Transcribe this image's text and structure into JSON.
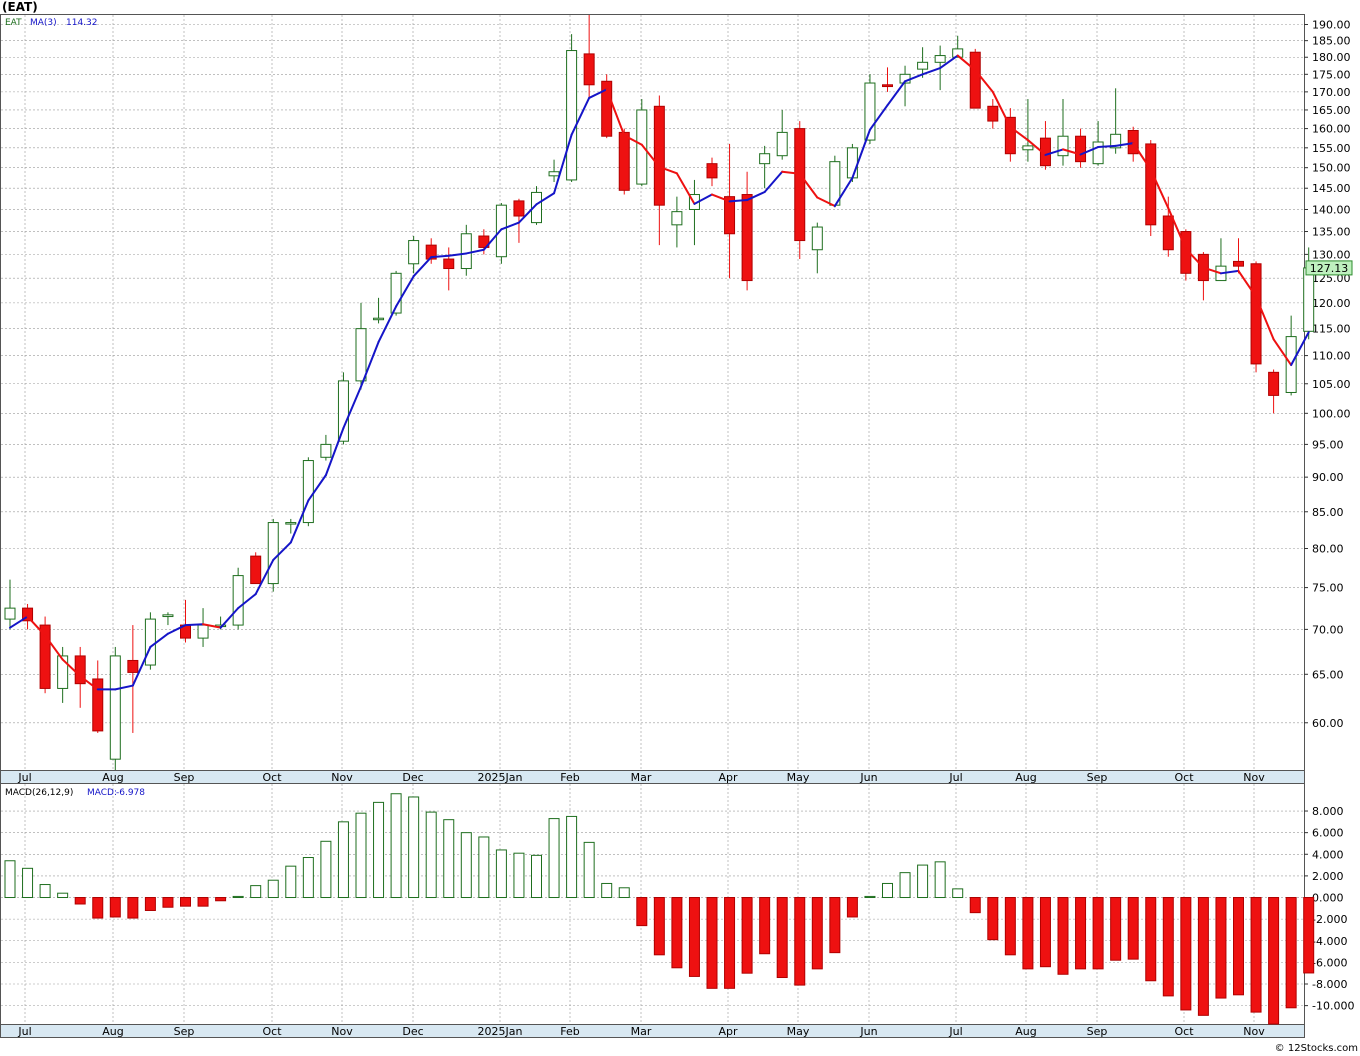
{
  "header": {
    "symbol": "(EAT)",
    "legend_symbol": "EAT",
    "ma_label": "MA(3)",
    "ma_value": "114.32",
    "macd_params": "MACD(26,12,9)",
    "macd_label": "MACD:",
    "macd_value": "-6.978",
    "last_price": "127.13"
  },
  "footer": {
    "copyright": "© 12Stocks.com"
  },
  "colors": {
    "up_candle": "#1e6e1e",
    "down_candle": "#ee1111",
    "ma_up": "#1515c8",
    "ma_down": "#ee1111",
    "grid": "#9a9a9a",
    "axis_band": "#d8e8f2",
    "price_box": "#bff0bf"
  },
  "chart_data": [
    {
      "type": "candlestick",
      "title": "(EAT)",
      "x_labels": [
        "Jul",
        "Aug",
        "Sep",
        "Oct",
        "Nov",
        "Dec",
        "2025Jan",
        "Feb",
        "Mar",
        "Apr",
        "May",
        "Jun",
        "Jul",
        "Aug",
        "Sep",
        "Oct",
        "Nov"
      ],
      "y_ticks": [
        60,
        65,
        70,
        75,
        80,
        85,
        90,
        95,
        100,
        105,
        110,
        115,
        120,
        125,
        130,
        135,
        140,
        145,
        150,
        155,
        160,
        165,
        170,
        175,
        180,
        185,
        190
      ],
      "y_scale": "log",
      "ylim": [
        55.5,
        193
      ],
      "grid": true,
      "last_value": 127.13,
      "candles": [
        {
          "o": 71.2,
          "h": 76.0,
          "l": 70.0,
          "c": 72.5
        },
        {
          "o": 72.5,
          "h": 73.0,
          "l": 70.0,
          "c": 71.0
        },
        {
          "o": 70.5,
          "h": 71.5,
          "l": 63.0,
          "c": 63.5
        },
        {
          "o": 63.5,
          "h": 68.0,
          "l": 62.0,
          "c": 67.0
        },
        {
          "o": 67.0,
          "h": 68.0,
          "l": 61.5,
          "c": 64.0
        },
        {
          "o": 64.5,
          "h": 66.5,
          "l": 59.0,
          "c": 59.2
        },
        {
          "o": 56.5,
          "h": 68.0,
          "l": 55.5,
          "c": 67.0
        },
        {
          "o": 66.5,
          "h": 70.5,
          "l": 59.0,
          "c": 65.2
        },
        {
          "o": 66.0,
          "h": 72.0,
          "l": 65.5,
          "c": 71.2
        },
        {
          "o": 71.5,
          "h": 72.0,
          "l": 70.5,
          "c": 71.7
        },
        {
          "o": 70.5,
          "h": 73.5,
          "l": 68.5,
          "c": 69.0
        },
        {
          "o": 69.0,
          "h": 72.5,
          "l": 68.0,
          "c": 70.5
        },
        {
          "o": 70.5,
          "h": 71.5,
          "l": 70.0,
          "c": 70.5
        },
        {
          "o": 70.5,
          "h": 77.5,
          "l": 70.0,
          "c": 76.5
        },
        {
          "o": 79.0,
          "h": 79.5,
          "l": 75.5,
          "c": 75.5
        },
        {
          "o": 75.5,
          "h": 84.0,
          "l": 74.5,
          "c": 83.5
        },
        {
          "o": 83.5,
          "h": 84.0,
          "l": 82.0,
          "c": 83.5
        },
        {
          "o": 83.5,
          "h": 93.0,
          "l": 83.0,
          "c": 92.5
        },
        {
          "o": 93.0,
          "h": 96.5,
          "l": 92.5,
          "c": 95.0
        },
        {
          "o": 95.5,
          "h": 107.0,
          "l": 95.0,
          "c": 105.5
        },
        {
          "o": 105.5,
          "h": 120.0,
          "l": 104.0,
          "c": 115.0
        },
        {
          "o": 117.0,
          "h": 121.0,
          "l": 116.0,
          "c": 117.0
        },
        {
          "o": 118.0,
          "h": 126.5,
          "l": 117.5,
          "c": 126.0
        },
        {
          "o": 128.0,
          "h": 134.0,
          "l": 126.0,
          "c": 133.0
        },
        {
          "o": 132.0,
          "h": 133.5,
          "l": 128.0,
          "c": 129.0
        },
        {
          "o": 129.0,
          "h": 131.5,
          "l": 122.5,
          "c": 127.0
        },
        {
          "o": 127.0,
          "h": 136.5,
          "l": 125.5,
          "c": 134.5
        },
        {
          "o": 134.0,
          "h": 135.5,
          "l": 130.0,
          "c": 131.5
        },
        {
          "o": 129.5,
          "h": 141.5,
          "l": 128.0,
          "c": 141.0
        },
        {
          "o": 142.0,
          "h": 142.5,
          "l": 132.5,
          "c": 138.5
        },
        {
          "o": 137.0,
          "h": 145.5,
          "l": 136.5,
          "c": 144.0
        },
        {
          "o": 148.0,
          "h": 152.0,
          "l": 146.5,
          "c": 149.0
        },
        {
          "o": 147.0,
          "h": 187.0,
          "l": 146.5,
          "c": 182.0
        },
        {
          "o": 181.0,
          "h": 193.0,
          "l": 168.0,
          "c": 172.0
        },
        {
          "o": 173.0,
          "h": 175.0,
          "l": 157.5,
          "c": 158.0
        },
        {
          "o": 159.0,
          "h": 160.0,
          "l": 143.5,
          "c": 144.5
        },
        {
          "o": 146.0,
          "h": 168.0,
          "l": 145.5,
          "c": 165.0
        },
        {
          "o": 166.0,
          "h": 169.0,
          "l": 132.0,
          "c": 141.0
        },
        {
          "o": 136.5,
          "h": 143.0,
          "l": 131.5,
          "c": 139.5
        },
        {
          "o": 140.0,
          "h": 147.0,
          "l": 132.0,
          "c": 143.5
        },
        {
          "o": 151.0,
          "h": 152.5,
          "l": 145.5,
          "c": 147.5
        },
        {
          "o": 143.0,
          "h": 156.0,
          "l": 125.0,
          "c": 134.5
        },
        {
          "o": 143.5,
          "h": 149.0,
          "l": 122.5,
          "c": 124.5
        },
        {
          "o": 151.0,
          "h": 155.5,
          "l": 145.0,
          "c": 153.5
        },
        {
          "o": 153.0,
          "h": 165.0,
          "l": 152.0,
          "c": 159.0
        },
        {
          "o": 160.0,
          "h": 162.0,
          "l": 129.0,
          "c": 133.0
        },
        {
          "o": 131.0,
          "h": 137.0,
          "l": 126.0,
          "c": 136.0
        },
        {
          "o": 141.0,
          "h": 153.0,
          "l": 140.5,
          "c": 151.5
        },
        {
          "o": 147.5,
          "h": 156.0,
          "l": 146.5,
          "c": 155.0
        },
        {
          "o": 157.0,
          "h": 175.0,
          "l": 156.0,
          "c": 172.5
        },
        {
          "o": 172.0,
          "h": 177.0,
          "l": 170.0,
          "c": 171.5
        },
        {
          "o": 172.5,
          "h": 177.5,
          "l": 166.0,
          "c": 175.0
        },
        {
          "o": 176.5,
          "h": 183.0,
          "l": 174.0,
          "c": 178.5
        },
        {
          "o": 178.5,
          "h": 183.5,
          "l": 170.5,
          "c": 180.5
        },
        {
          "o": 180.0,
          "h": 186.5,
          "l": 180.0,
          "c": 182.5
        },
        {
          "o": 181.5,
          "h": 182.5,
          "l": 165.5,
          "c": 165.5
        },
        {
          "o": 166.0,
          "h": 168.0,
          "l": 160.0,
          "c": 162.0
        },
        {
          "o": 163.0,
          "h": 165.5,
          "l": 151.5,
          "c": 153.5
        },
        {
          "o": 154.5,
          "h": 168.0,
          "l": 151.5,
          "c": 155.5
        },
        {
          "o": 157.5,
          "h": 162.0,
          "l": 149.5,
          "c": 150.5
        },
        {
          "o": 153.0,
          "h": 168.0,
          "l": 150.5,
          "c": 158.0
        },
        {
          "o": 158.0,
          "h": 160.0,
          "l": 150.0,
          "c": 151.5
        },
        {
          "o": 151.0,
          "h": 162.0,
          "l": 150.5,
          "c": 156.5
        },
        {
          "o": 155.0,
          "h": 171.0,
          "l": 153.5,
          "c": 158.5
        },
        {
          "o": 159.5,
          "h": 160.5,
          "l": 151.5,
          "c": 153.5
        },
        {
          "o": 156.0,
          "h": 157.0,
          "l": 134.0,
          "c": 136.5
        },
        {
          "o": 138.5,
          "h": 143.0,
          "l": 129.5,
          "c": 131.0
        },
        {
          "o": 135.0,
          "h": 135.5,
          "l": 124.5,
          "c": 126.0
        },
        {
          "o": 130.0,
          "h": 130.5,
          "l": 120.5,
          "c": 124.5
        },
        {
          "o": 124.5,
          "h": 133.5,
          "l": 124.5,
          "c": 127.5
        },
        {
          "o": 128.5,
          "h": 133.5,
          "l": 126.0,
          "c": 127.5
        },
        {
          "o": 128.0,
          "h": 128.5,
          "l": 107.0,
          "c": 108.5
        },
        {
          "o": 107.0,
          "h": 107.5,
          "l": 100.0,
          "c": 103.0
        },
        {
          "o": 103.5,
          "h": 117.5,
          "l": 103.0,
          "c": 113.5
        },
        {
          "o": 114.5,
          "h": 131.5,
          "l": 113.0,
          "c": 127.13
        }
      ],
      "ma3": [
        70.2,
        71.5,
        69.3,
        66.6,
        64.8,
        63.4,
        63.4,
        63.8,
        68.0,
        69.5,
        70.5,
        70.6,
        70.2,
        72.5,
        74.2,
        78.5,
        80.8,
        86.6,
        90.3,
        97.6,
        104.5,
        112.5,
        119.3,
        125.4,
        129.4,
        129.7,
        130.2,
        131.0,
        135.5,
        137.0,
        141.2,
        143.8,
        158.4,
        168.3,
        170.7,
        158.2,
        155.8,
        150.2,
        148.6,
        141.3,
        143.5,
        141.9,
        142.2,
        144.1,
        149.0,
        148.5,
        142.8,
        140.8,
        147.5,
        159.7,
        166.3,
        173.0,
        175.0,
        176.8,
        180.5,
        176.2,
        170.0,
        160.4,
        157.0,
        153.2,
        154.6,
        153.3,
        155.2,
        155.5,
        156.2,
        149.5,
        140.3,
        131.2,
        127.2,
        126.0,
        126.5,
        121.2,
        113.0,
        108.3,
        114.32
      ]
    },
    {
      "type": "bar",
      "title": "MACD(26,12,9)",
      "x_labels": [
        "Jul",
        "Aug",
        "Sep",
        "Oct",
        "Nov",
        "Dec",
        "2025Jan",
        "Feb",
        "Mar",
        "Apr",
        "May",
        "Jun",
        "Jul",
        "Aug",
        "Sep",
        "Oct",
        "Nov"
      ],
      "y_ticks": [
        8.0,
        6.0,
        4.0,
        2.0,
        0.0,
        -2.0,
        -4.0,
        -6.0,
        -8.0,
        -10.0
      ],
      "y_tick_labels": [
        "8.000",
        "6.000",
        "4.000",
        "2.000",
        "0.000",
        "-2.000",
        "-4.000",
        "-6.000",
        "-8.000",
        "-10.000"
      ],
      "ylim": [
        -11.7,
        10.5
      ],
      "grid": true,
      "last_value": -6.978,
      "values": [
        3.4,
        2.7,
        1.2,
        0.4,
        -0.6,
        -1.9,
        -1.8,
        -1.9,
        -1.2,
        -0.9,
        -0.8,
        -0.8,
        -0.3,
        0.1,
        1.1,
        1.6,
        2.9,
        3.7,
        5.2,
        7.0,
        7.8,
        8.8,
        9.6,
        9.3,
        7.9,
        7.2,
        6.0,
        5.6,
        4.4,
        4.1,
        3.9,
        7.3,
        7.5,
        5.1,
        1.3,
        0.9,
        -2.6,
        -5.3,
        -6.5,
        -7.3,
        -8.4,
        -8.4,
        -7.0,
        -5.2,
        -7.4,
        -8.1,
        -6.6,
        -5.1,
        -1.8,
        0.1,
        1.3,
        2.3,
        3.0,
        3.3,
        0.8,
        -1.4,
        -3.9,
        -5.3,
        -6.6,
        -6.4,
        -7.1,
        -6.6,
        -6.6,
        -5.8,
        -5.7,
        -7.7,
        -9.1,
        -10.4,
        -10.9,
        -9.3,
        -9.0,
        -10.6,
        -11.7,
        -10.2,
        -6.978
      ]
    }
  ]
}
